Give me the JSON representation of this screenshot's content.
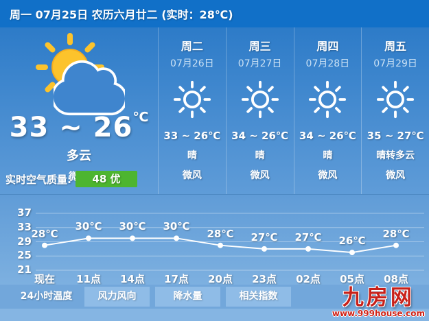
{
  "colors": {
    "topbar_blue": "#1170c8",
    "panel_gradient_top": "#2d7bc8",
    "panel_gradient_bottom": "#5f9cd8",
    "air_badge_green": "#4db52f",
    "logo_red": "#c8211a"
  },
  "header": {
    "text": "周一 07月25日 农历六月廿二 (实时：28℃)"
  },
  "today": {
    "icon": "sun-behind-cloud",
    "temp": "33 ~ 26",
    "temp_unit": "℃",
    "condition": "多云",
    "wind": "微风",
    "air_label": "实时空气质量:",
    "air_value": "48 优"
  },
  "forecast": [
    {
      "day": "周二",
      "date": "07月26日",
      "icon": "sunny",
      "temp": "33 ~ 26℃",
      "condition": "晴",
      "wind": "微风"
    },
    {
      "day": "周三",
      "date": "07月27日",
      "icon": "sunny",
      "temp": "34 ~ 26℃",
      "condition": "晴",
      "wind": "微风"
    },
    {
      "day": "周四",
      "date": "07月28日",
      "icon": "sunny",
      "temp": "34 ~ 26℃",
      "condition": "晴",
      "wind": "微风"
    },
    {
      "day": "周五",
      "date": "07月29日",
      "icon": "sunny",
      "temp": "35 ~ 27℃",
      "condition": "晴转多云",
      "wind": "微风"
    }
  ],
  "chart_data": {
    "type": "line",
    "title": "24小时温度",
    "x": [
      "现在",
      "11点",
      "14点",
      "17点",
      "20点",
      "23点",
      "02点",
      "05点",
      "08点"
    ],
    "values": [
      28,
      30,
      30,
      30,
      28,
      27,
      27,
      26,
      28
    ],
    "point_labels": [
      "28℃",
      "30℃",
      "30℃",
      "30℃",
      "28℃",
      "27℃",
      "27℃",
      "26℃",
      "28℃"
    ],
    "yticks": [
      37,
      33,
      29,
      25,
      21
    ],
    "ylim": [
      21,
      37
    ],
    "grid": true,
    "line_color": "#ffffff"
  },
  "tabs": [
    {
      "label": "24小时温度",
      "active": true
    },
    {
      "label": "风力风向",
      "active": false
    },
    {
      "label": "降水量",
      "active": false
    },
    {
      "label": "相关指数",
      "active": false
    }
  ],
  "logo": {
    "text": "九房网",
    "url": "www.999house.com"
  }
}
